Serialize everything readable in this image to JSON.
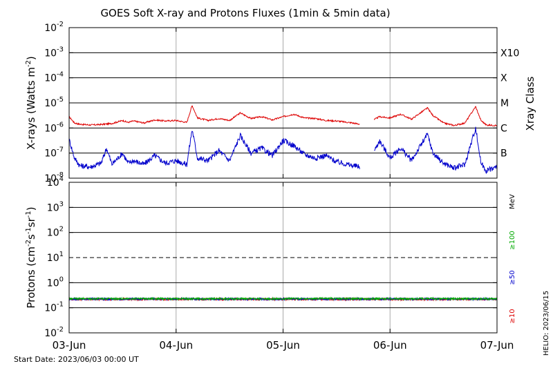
{
  "chart_data": [
    {
      "type": "line",
      "title": "GOES Soft X-ray and Protons Fluxes   (1min & 5min data)",
      "ylabel": "X-rays (Watts m",
      "ylabel_sup": "-2",
      "ylabel_close": ")",
      "yscale": "log",
      "ylim_exponent": [
        -8,
        -2
      ],
      "y_ticks": [
        {
          "base": "10",
          "exp": "-8"
        },
        {
          "base": "10",
          "exp": "-7"
        },
        {
          "base": "10",
          "exp": "-6"
        },
        {
          "base": "10",
          "exp": "-5"
        },
        {
          "base": "10",
          "exp": "-4"
        },
        {
          "base": "10",
          "exp": "-3"
        },
        {
          "base": "10",
          "exp": "-2"
        }
      ],
      "right_axis_label": "Xray Class",
      "classes": [
        {
          "label": "B",
          "exp": -7
        },
        {
          "label": "C",
          "exp": -6
        },
        {
          "label": "M",
          "exp": -5
        },
        {
          "label": "X",
          "exp": -4
        },
        {
          "label": "X10",
          "exp": -3
        }
      ],
      "series": [
        {
          "color": "#dd0000",
          "points": [
            [
              0,
              -5.55
            ],
            [
              0.05,
              -5.8
            ],
            [
              0.1,
              -5.85
            ],
            [
              0.2,
              -5.88
            ],
            [
              0.3,
              -5.86
            ],
            [
              0.4,
              -5.82
            ],
            [
              0.5,
              -5.7
            ],
            [
              0.55,
              -5.78
            ],
            [
              0.6,
              -5.72
            ],
            [
              0.7,
              -5.8
            ],
            [
              0.8,
              -5.68
            ],
            [
              0.9,
              -5.72
            ],
            [
              1.0,
              -5.7
            ],
            [
              1.1,
              -5.78
            ],
            [
              1.15,
              -5.1
            ],
            [
              1.2,
              -5.6
            ],
            [
              1.3,
              -5.7
            ],
            [
              1.4,
              -5.62
            ],
            [
              1.5,
              -5.7
            ],
            [
              1.6,
              -5.4
            ],
            [
              1.7,
              -5.62
            ],
            [
              1.8,
              -5.55
            ],
            [
              1.9,
              -5.68
            ],
            [
              2.0,
              -5.55
            ],
            [
              2.1,
              -5.45
            ],
            [
              2.2,
              -5.6
            ],
            [
              2.3,
              -5.62
            ],
            [
              2.4,
              -5.7
            ],
            [
              2.5,
              -5.72
            ],
            [
              2.65,
              -5.8
            ],
            [
              2.72,
              -5.85
            ],
            [
              2.8,
              -5.8
            ],
            [
              2.9,
              -5.55
            ],
            [
              3.0,
              -5.6
            ],
            [
              3.1,
              -5.45
            ],
            [
              3.2,
              -5.65
            ],
            [
              3.35,
              -5.2
            ],
            [
              3.4,
              -5.5
            ],
            [
              3.5,
              -5.8
            ],
            [
              3.6,
              -5.9
            ],
            [
              3.7,
              -5.8
            ],
            [
              3.8,
              -5.15
            ],
            [
              3.85,
              -5.7
            ],
            [
              3.9,
              -5.88
            ],
            [
              4.0,
              -5.9
            ]
          ]
        },
        {
          "color": "#0000cc",
          "points": [
            [
              0,
              -6.45
            ],
            [
              0.05,
              -7.2
            ],
            [
              0.1,
              -7.5
            ],
            [
              0.2,
              -7.55
            ],
            [
              0.3,
              -7.4
            ],
            [
              0.35,
              -6.8
            ],
            [
              0.4,
              -7.45
            ],
            [
              0.5,
              -7.0
            ],
            [
              0.55,
              -7.4
            ],
            [
              0.6,
              -7.3
            ],
            [
              0.7,
              -7.45
            ],
            [
              0.8,
              -7.1
            ],
            [
              0.9,
              -7.4
            ],
            [
              1.0,
              -7.3
            ],
            [
              1.1,
              -7.45
            ],
            [
              1.15,
              -6.05
            ],
            [
              1.2,
              -7.2
            ],
            [
              1.3,
              -7.3
            ],
            [
              1.4,
              -6.9
            ],
            [
              1.5,
              -7.3
            ],
            [
              1.6,
              -6.3
            ],
            [
              1.7,
              -7.0
            ],
            [
              1.8,
              -6.8
            ],
            [
              1.9,
              -7.1
            ],
            [
              2.0,
              -6.5
            ],
            [
              2.1,
              -6.7
            ],
            [
              2.2,
              -7.05
            ],
            [
              2.3,
              -7.2
            ],
            [
              2.4,
              -7.1
            ],
            [
              2.5,
              -7.35
            ],
            [
              2.65,
              -7.5
            ],
            [
              2.72,
              -7.55
            ],
            [
              2.8,
              -7.4
            ],
            [
              2.9,
              -6.5
            ],
            [
              3.0,
              -7.2
            ],
            [
              3.1,
              -6.8
            ],
            [
              3.2,
              -7.3
            ],
            [
              3.35,
              -6.25
            ],
            [
              3.4,
              -7.0
            ],
            [
              3.5,
              -7.4
            ],
            [
              3.6,
              -7.6
            ],
            [
              3.7,
              -7.45
            ],
            [
              3.8,
              -6.0
            ],
            [
              3.85,
              -7.4
            ],
            [
              3.9,
              -7.7
            ],
            [
              4.0,
              -7.55
            ]
          ]
        }
      ]
    },
    {
      "type": "line",
      "ylabel": "Protons (cm",
      "ylabel_sup1": "-2",
      "ylabel_mid": "s",
      "ylabel_sup2": "-1",
      "ylabel_mid2": "sr",
      "ylabel_sup3": "-1",
      "ylabel_close": ")",
      "yscale": "log",
      "ylim_exponent": [
        -2,
        4
      ],
      "y_ticks": [
        {
          "base": "10",
          "exp": "-2"
        },
        {
          "base": "10",
          "exp": "-1"
        },
        {
          "base": "10",
          "exp": "0"
        },
        {
          "base": "10",
          "exp": "1"
        },
        {
          "base": "10",
          "exp": "2"
        },
        {
          "base": "10",
          "exp": "3"
        },
        {
          "base": "10",
          "exp": "4"
        }
      ],
      "dashed_level_exp": 1,
      "unit": "MeV",
      "legend": [
        {
          "label": "≥100",
          "color": "#00aa00"
        },
        {
          "label": "≥50",
          "color": "#0000cc"
        },
        {
          "label": "≥10",
          "color": "#dd0000"
        }
      ],
      "base_level_exp": -0.65
    }
  ],
  "x_ticks": [
    "03-Jun",
    "04-Jun",
    "05-Jun",
    "06-Jun",
    "07-Jun"
  ],
  "x_range_days": [
    0,
    4
  ],
  "gap_days": [
    2.72,
    2.85
  ],
  "footer": {
    "start_date": "Start Date: 2023/06/03 00:00 UT",
    "helio": "HELIO: 2023/06/15"
  }
}
